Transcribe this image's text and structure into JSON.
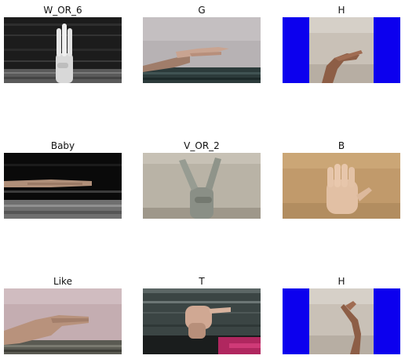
{
  "images": [
    {
      "label": "W_OR_6"
    },
    {
      "label": "G"
    },
    {
      "label": "H"
    },
    {
      "label": "Baby"
    },
    {
      "label": "V_OR_2"
    },
    {
      "label": "B"
    },
    {
      "label": "Like"
    },
    {
      "label": "T"
    },
    {
      "label": "H"
    }
  ]
}
